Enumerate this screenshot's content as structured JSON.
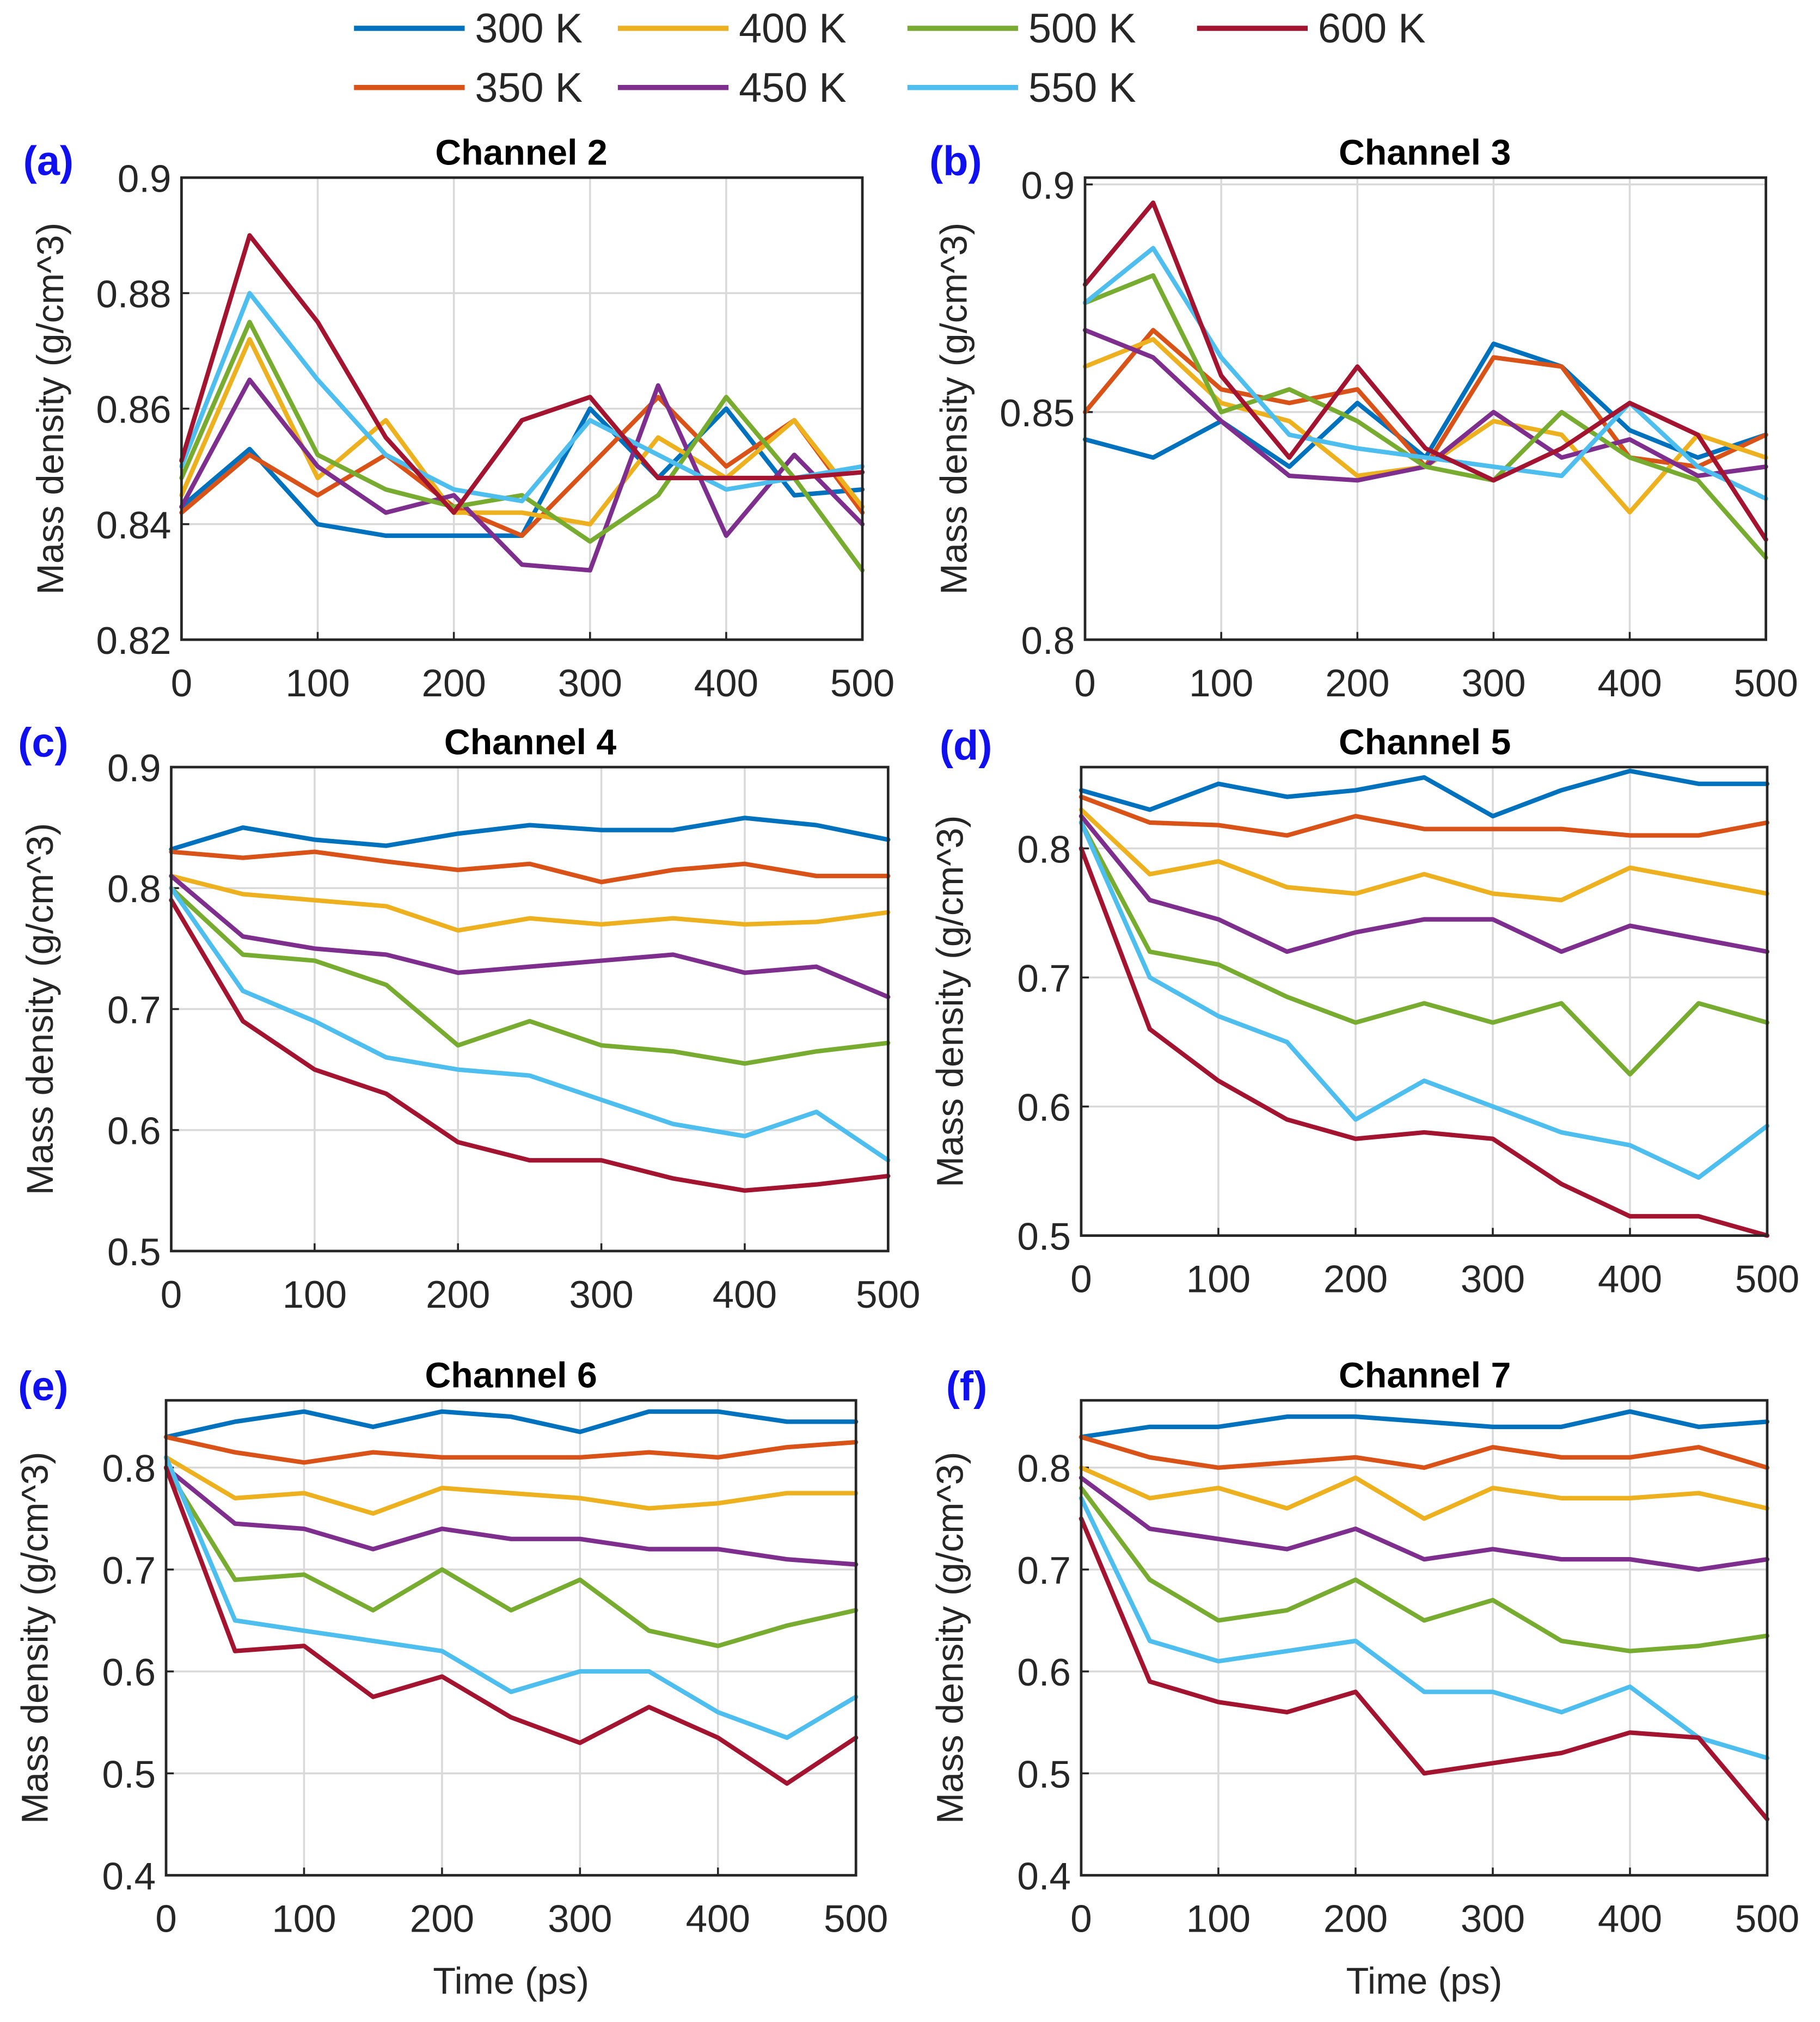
{
  "legend": {
    "entries": [
      {
        "name": "300 K",
        "color": "#0072BD"
      },
      {
        "name": "350 K",
        "color": "#D95319"
      },
      {
        "name": "400 K",
        "color": "#EDB120"
      },
      {
        "name": "450 K",
        "color": "#7E2F8E"
      },
      {
        "name": "500 K",
        "color": "#77AC30"
      },
      {
        "name": "550 K",
        "color": "#4DBEEE"
      },
      {
        "name": "600 K",
        "color": "#A2142F"
      }
    ]
  },
  "chart_data": [
    {
      "type": "line",
      "label": "(a)",
      "title": "Channel 2",
      "xlabel": "",
      "ylabel": "Mass density (g/cm^3)",
      "xlim": [
        0,
        500
      ],
      "ylim": [
        0.82,
        0.9
      ],
      "grid": true,
      "xticks": [
        "0",
        "100",
        "200",
        "300",
        "400",
        "500"
      ],
      "yticks": [
        "0.82",
        "0.84",
        "0.86",
        "0.88",
        "0.9"
      ],
      "x": [
        0,
        50,
        100,
        150,
        200,
        250,
        300,
        350,
        400,
        450,
        500
      ],
      "series": [
        {
          "name": "300 K",
          "values": [
            0.843,
            0.853,
            0.84,
            0.838,
            0.838,
            0.838,
            0.86,
            0.848,
            0.86,
            0.845,
            0.846
          ]
        },
        {
          "name": "350 K",
          "values": [
            0.842,
            0.852,
            0.845,
            0.852,
            0.843,
            0.838,
            0.85,
            0.862,
            0.85,
            0.858,
            0.842
          ]
        },
        {
          "name": "400 K",
          "values": [
            0.845,
            0.872,
            0.848,
            0.858,
            0.842,
            0.842,
            0.84,
            0.855,
            0.848,
            0.858,
            0.843
          ]
        },
        {
          "name": "450 K",
          "values": [
            0.843,
            0.865,
            0.85,
            0.842,
            0.845,
            0.833,
            0.832,
            0.864,
            0.838,
            0.852,
            0.84
          ]
        },
        {
          "name": "500 K",
          "values": [
            0.848,
            0.875,
            0.852,
            0.846,
            0.843,
            0.845,
            0.837,
            0.845,
            0.862,
            0.848,
            0.832
          ]
        },
        {
          "name": "550 K",
          "values": [
            0.85,
            0.88,
            0.865,
            0.852,
            0.846,
            0.844,
            0.858,
            0.852,
            0.846,
            0.848,
            0.85
          ]
        },
        {
          "name": "600 K",
          "values": [
            0.851,
            0.89,
            0.875,
            0.855,
            0.842,
            0.858,
            0.862,
            0.848,
            0.848,
            0.848,
            0.849
          ]
        }
      ]
    },
    {
      "type": "line",
      "label": "(b)",
      "title": "Channel 3",
      "xlabel": "",
      "ylabel": "Mass density (g/cm^3)",
      "xlim": [
        0,
        500
      ],
      "ylim": [
        0.8,
        0.9015
      ],
      "grid": true,
      "xticks": [
        "0",
        "100",
        "200",
        "300",
        "400",
        "500"
      ],
      "yticks": [
        "0.8",
        "0.85",
        "0.9"
      ],
      "x": [
        0,
        50,
        100,
        150,
        200,
        250,
        300,
        350,
        400,
        450,
        500
      ],
      "series": [
        {
          "name": "300 K",
          "values": [
            0.844,
            0.84,
            0.848,
            0.838,
            0.852,
            0.84,
            0.865,
            0.86,
            0.846,
            0.84,
            0.845
          ]
        },
        {
          "name": "350 K",
          "values": [
            0.85,
            0.868,
            0.855,
            0.852,
            0.855,
            0.838,
            0.862,
            0.86,
            0.84,
            0.838,
            0.845
          ]
        },
        {
          "name": "400 K",
          "values": [
            0.86,
            0.866,
            0.852,
            0.848,
            0.836,
            0.838,
            0.848,
            0.845,
            0.828,
            0.845,
            0.84
          ]
        },
        {
          "name": "450 K",
          "values": [
            0.868,
            0.862,
            0.848,
            0.836,
            0.835,
            0.838,
            0.85,
            0.84,
            0.844,
            0.836,
            0.838
          ]
        },
        {
          "name": "500 K",
          "values": [
            0.874,
            0.88,
            0.85,
            0.855,
            0.848,
            0.838,
            0.835,
            0.85,
            0.84,
            0.835,
            0.818
          ]
        },
        {
          "name": "550 K",
          "values": [
            0.874,
            0.886,
            0.862,
            0.845,
            0.842,
            0.84,
            0.838,
            0.836,
            0.852,
            0.838,
            0.831
          ]
        },
        {
          "name": "600 K",
          "values": [
            0.878,
            0.896,
            0.858,
            0.84,
            0.86,
            0.842,
            0.835,
            0.842,
            0.852,
            0.845,
            0.822
          ]
        }
      ]
    },
    {
      "type": "line",
      "label": "(c)",
      "title": "Channel 4",
      "xlabel": "",
      "ylabel": "Mass density (g/cm^3)",
      "xlim": [
        0,
        500
      ],
      "ylim": [
        0.5,
        0.9
      ],
      "grid": true,
      "xticks": [
        "0",
        "100",
        "200",
        "300",
        "400",
        "500"
      ],
      "yticks": [
        "0.5",
        "0.6",
        "0.7",
        "0.8",
        "0.9"
      ],
      "x": [
        0,
        50,
        100,
        150,
        200,
        250,
        300,
        350,
        400,
        450,
        500
      ],
      "series": [
        {
          "name": "300 K",
          "values": [
            0.832,
            0.85,
            0.84,
            0.835,
            0.845,
            0.852,
            0.848,
            0.848,
            0.858,
            0.852,
            0.84
          ]
        },
        {
          "name": "350 K",
          "values": [
            0.83,
            0.825,
            0.83,
            0.822,
            0.815,
            0.82,
            0.805,
            0.815,
            0.82,
            0.81,
            0.81
          ]
        },
        {
          "name": "400 K",
          "values": [
            0.81,
            0.795,
            0.79,
            0.785,
            0.765,
            0.775,
            0.77,
            0.775,
            0.77,
            0.772,
            0.78
          ]
        },
        {
          "name": "450 K",
          "values": [
            0.81,
            0.76,
            0.75,
            0.745,
            0.73,
            0.735,
            0.74,
            0.745,
            0.73,
            0.735,
            0.71
          ]
        },
        {
          "name": "500 K",
          "values": [
            0.8,
            0.745,
            0.74,
            0.72,
            0.67,
            0.69,
            0.67,
            0.665,
            0.655,
            0.665,
            0.672
          ]
        },
        {
          "name": "550 K",
          "values": [
            0.8,
            0.715,
            0.69,
            0.66,
            0.65,
            0.645,
            0.625,
            0.605,
            0.595,
            0.615,
            0.575
          ]
        },
        {
          "name": "600 K",
          "values": [
            0.79,
            0.69,
            0.65,
            0.63,
            0.59,
            0.575,
            0.575,
            0.56,
            0.55,
            0.555,
            0.562
          ]
        }
      ]
    },
    {
      "type": "line",
      "label": "(d)",
      "title": "Channel 5",
      "xlabel": "",
      "ylabel": "Mass density (g/cm^3)",
      "xlim": [
        0,
        500
      ],
      "ylim": [
        0.5,
        0.863
      ],
      "grid": true,
      "xticks": [
        "0",
        "100",
        "200",
        "300",
        "400",
        "500"
      ],
      "yticks": [
        "0.5",
        "0.6",
        "0.7",
        "0.8"
      ],
      "x": [
        0,
        50,
        100,
        150,
        200,
        250,
        300,
        350,
        400,
        450,
        500
      ],
      "series": [
        {
          "name": "300 K",
          "values": [
            0.845,
            0.83,
            0.85,
            0.84,
            0.845,
            0.855,
            0.825,
            0.845,
            0.86,
            0.85,
            0.85
          ]
        },
        {
          "name": "350 K",
          "values": [
            0.84,
            0.82,
            0.818,
            0.81,
            0.825,
            0.815,
            0.815,
            0.815,
            0.81,
            0.81,
            0.82
          ]
        },
        {
          "name": "400 K",
          "values": [
            0.83,
            0.78,
            0.79,
            0.77,
            0.765,
            0.78,
            0.765,
            0.76,
            0.785,
            0.775,
            0.765
          ]
        },
        {
          "name": "450 K",
          "values": [
            0.825,
            0.76,
            0.745,
            0.72,
            0.735,
            0.745,
            0.745,
            0.72,
            0.74,
            0.73,
            0.72
          ]
        },
        {
          "name": "500 K",
          "values": [
            0.82,
            0.72,
            0.71,
            0.685,
            0.665,
            0.68,
            0.665,
            0.68,
            0.625,
            0.68,
            0.665
          ]
        },
        {
          "name": "550 K",
          "values": [
            0.82,
            0.7,
            0.67,
            0.65,
            0.59,
            0.62,
            0.6,
            0.58,
            0.57,
            0.545,
            0.585
          ]
        },
        {
          "name": "600 K",
          "values": [
            0.8,
            0.66,
            0.62,
            0.59,
            0.575,
            0.58,
            0.575,
            0.54,
            0.515,
            0.515,
            0.5
          ]
        }
      ]
    },
    {
      "type": "line",
      "label": "(e)",
      "title": "Channel 6",
      "xlabel": "Time (ps)",
      "ylabel": "Mass density (g/cm^3)",
      "xlim": [
        0,
        500
      ],
      "ylim": [
        0.4,
        0.866
      ],
      "grid": true,
      "xticks": [
        "0",
        "100",
        "200",
        "300",
        "400",
        "500"
      ],
      "yticks": [
        "0.4",
        "0.5",
        "0.6",
        "0.7",
        "0.8"
      ],
      "x": [
        0,
        50,
        100,
        150,
        200,
        250,
        300,
        350,
        400,
        450,
        500
      ],
      "series": [
        {
          "name": "300 K",
          "values": [
            0.83,
            0.845,
            0.855,
            0.84,
            0.855,
            0.85,
            0.835,
            0.855,
            0.855,
            0.845,
            0.845
          ]
        },
        {
          "name": "350 K",
          "values": [
            0.83,
            0.815,
            0.805,
            0.815,
            0.81,
            0.81,
            0.81,
            0.815,
            0.81,
            0.82,
            0.825
          ]
        },
        {
          "name": "400 K",
          "values": [
            0.81,
            0.77,
            0.775,
            0.755,
            0.78,
            0.775,
            0.77,
            0.76,
            0.765,
            0.775,
            0.775
          ]
        },
        {
          "name": "450 K",
          "values": [
            0.8,
            0.745,
            0.74,
            0.72,
            0.74,
            0.73,
            0.73,
            0.72,
            0.72,
            0.71,
            0.705
          ]
        },
        {
          "name": "500 K",
          "values": [
            0.8,
            0.69,
            0.695,
            0.66,
            0.7,
            0.66,
            0.69,
            0.64,
            0.625,
            0.645,
            0.66
          ]
        },
        {
          "name": "550 K",
          "values": [
            0.81,
            0.65,
            0.64,
            0.63,
            0.62,
            0.58,
            0.6,
            0.6,
            0.56,
            0.535,
            0.575
          ]
        },
        {
          "name": "600 K",
          "values": [
            0.8,
            0.62,
            0.625,
            0.575,
            0.595,
            0.555,
            0.53,
            0.565,
            0.535,
            0.49,
            0.535
          ]
        }
      ]
    },
    {
      "type": "line",
      "label": "(f)",
      "title": "Channel 7",
      "xlabel": "Time (ps)",
      "ylabel": "Mass density (g/cm^3)",
      "xlim": [
        0,
        500
      ],
      "ylim": [
        0.4,
        0.866
      ],
      "grid": true,
      "xticks": [
        "0",
        "100",
        "200",
        "300",
        "400",
        "500"
      ],
      "yticks": [
        "0.4",
        "0.5",
        "0.6",
        "0.7",
        "0.8"
      ],
      "x": [
        0,
        50,
        100,
        150,
        200,
        250,
        300,
        350,
        400,
        450,
        500
      ],
      "series": [
        {
          "name": "300 K",
          "values": [
            0.83,
            0.84,
            0.84,
            0.85,
            0.85,
            0.845,
            0.84,
            0.84,
            0.855,
            0.84,
            0.845
          ]
        },
        {
          "name": "350 K",
          "values": [
            0.83,
            0.81,
            0.8,
            0.805,
            0.81,
            0.8,
            0.82,
            0.81,
            0.81,
            0.82,
            0.8
          ]
        },
        {
          "name": "400 K",
          "values": [
            0.8,
            0.77,
            0.78,
            0.76,
            0.79,
            0.75,
            0.78,
            0.77,
            0.77,
            0.775,
            0.76
          ]
        },
        {
          "name": "450 K",
          "values": [
            0.79,
            0.74,
            0.73,
            0.72,
            0.74,
            0.71,
            0.72,
            0.71,
            0.71,
            0.7,
            0.71
          ]
        },
        {
          "name": "500 K",
          "values": [
            0.78,
            0.69,
            0.65,
            0.66,
            0.69,
            0.65,
            0.67,
            0.63,
            0.62,
            0.625,
            0.635
          ]
        },
        {
          "name": "550 K",
          "values": [
            0.77,
            0.63,
            0.61,
            0.62,
            0.63,
            0.58,
            0.58,
            0.56,
            0.585,
            0.535,
            0.515
          ]
        },
        {
          "name": "600 K",
          "values": [
            0.75,
            0.59,
            0.57,
            0.56,
            0.58,
            0.5,
            0.51,
            0.52,
            0.54,
            0.535,
            0.455
          ]
        }
      ]
    }
  ]
}
